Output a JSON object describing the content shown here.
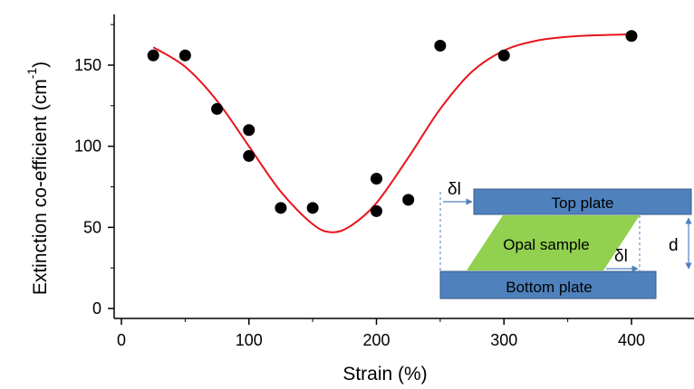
{
  "chart_data": {
    "type": "scatter",
    "xlabel": "Strain (%)",
    "ylabel": "Extinction co-efficient (cm",
    "ylabel_superscript": "-1",
    "ylabel_close": ")",
    "xlim": [
      -5,
      450
    ],
    "ylim": [
      -5,
      180
    ],
    "x_ticks": [
      0,
      100,
      200,
      300,
      400
    ],
    "y_ticks": [
      0,
      50,
      100,
      150
    ],
    "grid": false,
    "series": [
      {
        "type": "scatter",
        "marker_color": "#000000",
        "points": [
          {
            "x": 25,
            "y": 156
          },
          {
            "x": 50,
            "y": 156
          },
          {
            "x": 75,
            "y": 123
          },
          {
            "x": 100,
            "y": 110
          },
          {
            "x": 100,
            "y": 94
          },
          {
            "x": 125,
            "y": 62
          },
          {
            "x": 150,
            "y": 62
          },
          {
            "x": 200,
            "y": 80
          },
          {
            "x": 200,
            "y": 60
          },
          {
            "x": 225,
            "y": 67
          },
          {
            "x": 250,
            "y": 162
          },
          {
            "x": 300,
            "y": 156
          },
          {
            "x": 400,
            "y": 168
          }
        ]
      },
      {
        "type": "line",
        "line_color": "#e8141b",
        "points": [
          {
            "x": 25,
            "y": 161
          },
          {
            "x": 50,
            "y": 149
          },
          {
            "x": 75,
            "y": 128
          },
          {
            "x": 100,
            "y": 100
          },
          {
            "x": 125,
            "y": 72
          },
          {
            "x": 150,
            "y": 52
          },
          {
            "x": 165,
            "y": 47
          },
          {
            "x": 180,
            "y": 51
          },
          {
            "x": 200,
            "y": 65
          },
          {
            "x": 225,
            "y": 93
          },
          {
            "x": 250,
            "y": 123
          },
          {
            "x": 275,
            "y": 146
          },
          {
            "x": 300,
            "y": 159
          },
          {
            "x": 325,
            "y": 165
          },
          {
            "x": 350,
            "y": 167.5
          },
          {
            "x": 375,
            "y": 168.5
          },
          {
            "x": 400,
            "y": 169
          }
        ]
      }
    ]
  },
  "inset": {
    "top_plate_label": "Top plate",
    "sample_label": "Opal sample",
    "bottom_plate_label": "Bottom plate",
    "shift_symbol": "δl",
    "gap_symbol": "d",
    "plate_color": "#4f81bd",
    "plate_border_color": "#385d8a",
    "sample_color": "#92d050",
    "arrow_color": "#4f81bd"
  }
}
